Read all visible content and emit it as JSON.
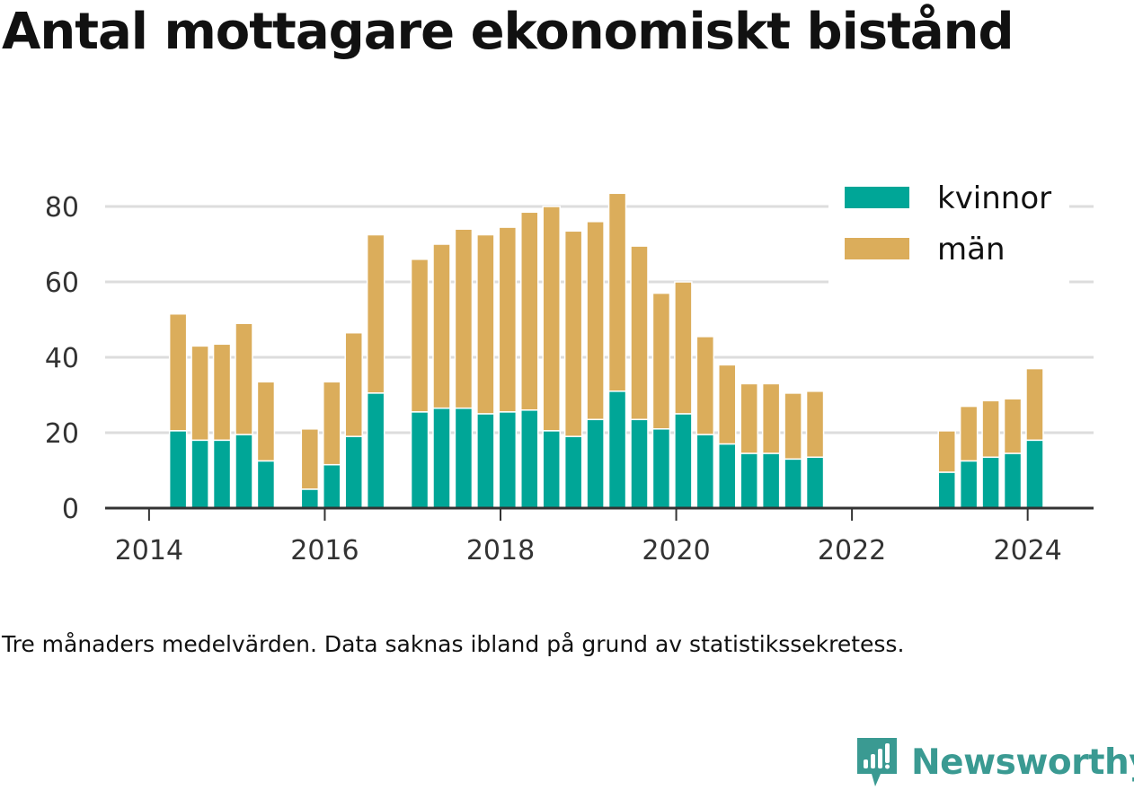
{
  "title": "Antal mottagare ekonomiskt bistånd",
  "caption": "Tre månaders medelvärden. Data saknas ibland på grund av statistikssekretess.",
  "brand": {
    "name": "Newsworthy",
    "color": "#3a9a92",
    "icon": "newsworthy-logo-icon"
  },
  "chart_data": {
    "type": "bar",
    "stacked": true,
    "grid": true,
    "legend_position": "top-right",
    "x_ticks": [
      2014,
      2016,
      2018,
      2020,
      2022,
      2024
    ],
    "xlim": [
      2013.5,
      2024.75
    ],
    "y_ticks": [
      0,
      20,
      40,
      60,
      80
    ],
    "ylim": [
      0,
      84
    ],
    "colors": {
      "kvinnor": "#00a697",
      "män": "#dbad5b",
      "grid": "#dddddd",
      "axis": "#333333"
    },
    "x": [
      2014.33,
      2014.58,
      2014.83,
      2015.08,
      2015.33,
      2015.83,
      2016.08,
      2016.33,
      2016.58,
      2017.08,
      2017.33,
      2017.58,
      2017.83,
      2018.08,
      2018.33,
      2018.58,
      2018.83,
      2019.08,
      2019.33,
      2019.58,
      2019.83,
      2020.08,
      2020.33,
      2020.58,
      2020.83,
      2021.08,
      2021.33,
      2021.58,
      2023.08,
      2023.33,
      2023.58,
      2023.83,
      2024.08
    ],
    "series": [
      {
        "name": "kvinnor",
        "values": [
          20.5,
          18,
          18,
          19.5,
          12.5,
          5,
          11.5,
          19,
          30.5,
          25.5,
          26.5,
          26.5,
          25,
          25.5,
          26,
          20.5,
          19,
          23.5,
          31,
          23.5,
          21,
          25,
          19.5,
          17,
          14.5,
          14.5,
          13,
          13.5,
          9.5,
          12.5,
          13.5,
          14.5,
          18
        ]
      },
      {
        "name": "män",
        "values": [
          31,
          25,
          25.5,
          29.5,
          21,
          16,
          22,
          27.5,
          42,
          40.5,
          43.5,
          47.5,
          47.5,
          49,
          52.5,
          59.5,
          54.5,
          52.5,
          52.5,
          46,
          36,
          35,
          26,
          21,
          18.5,
          18.5,
          17.5,
          17.5,
          11,
          14.5,
          15,
          14.5,
          19
        ]
      }
    ]
  }
}
